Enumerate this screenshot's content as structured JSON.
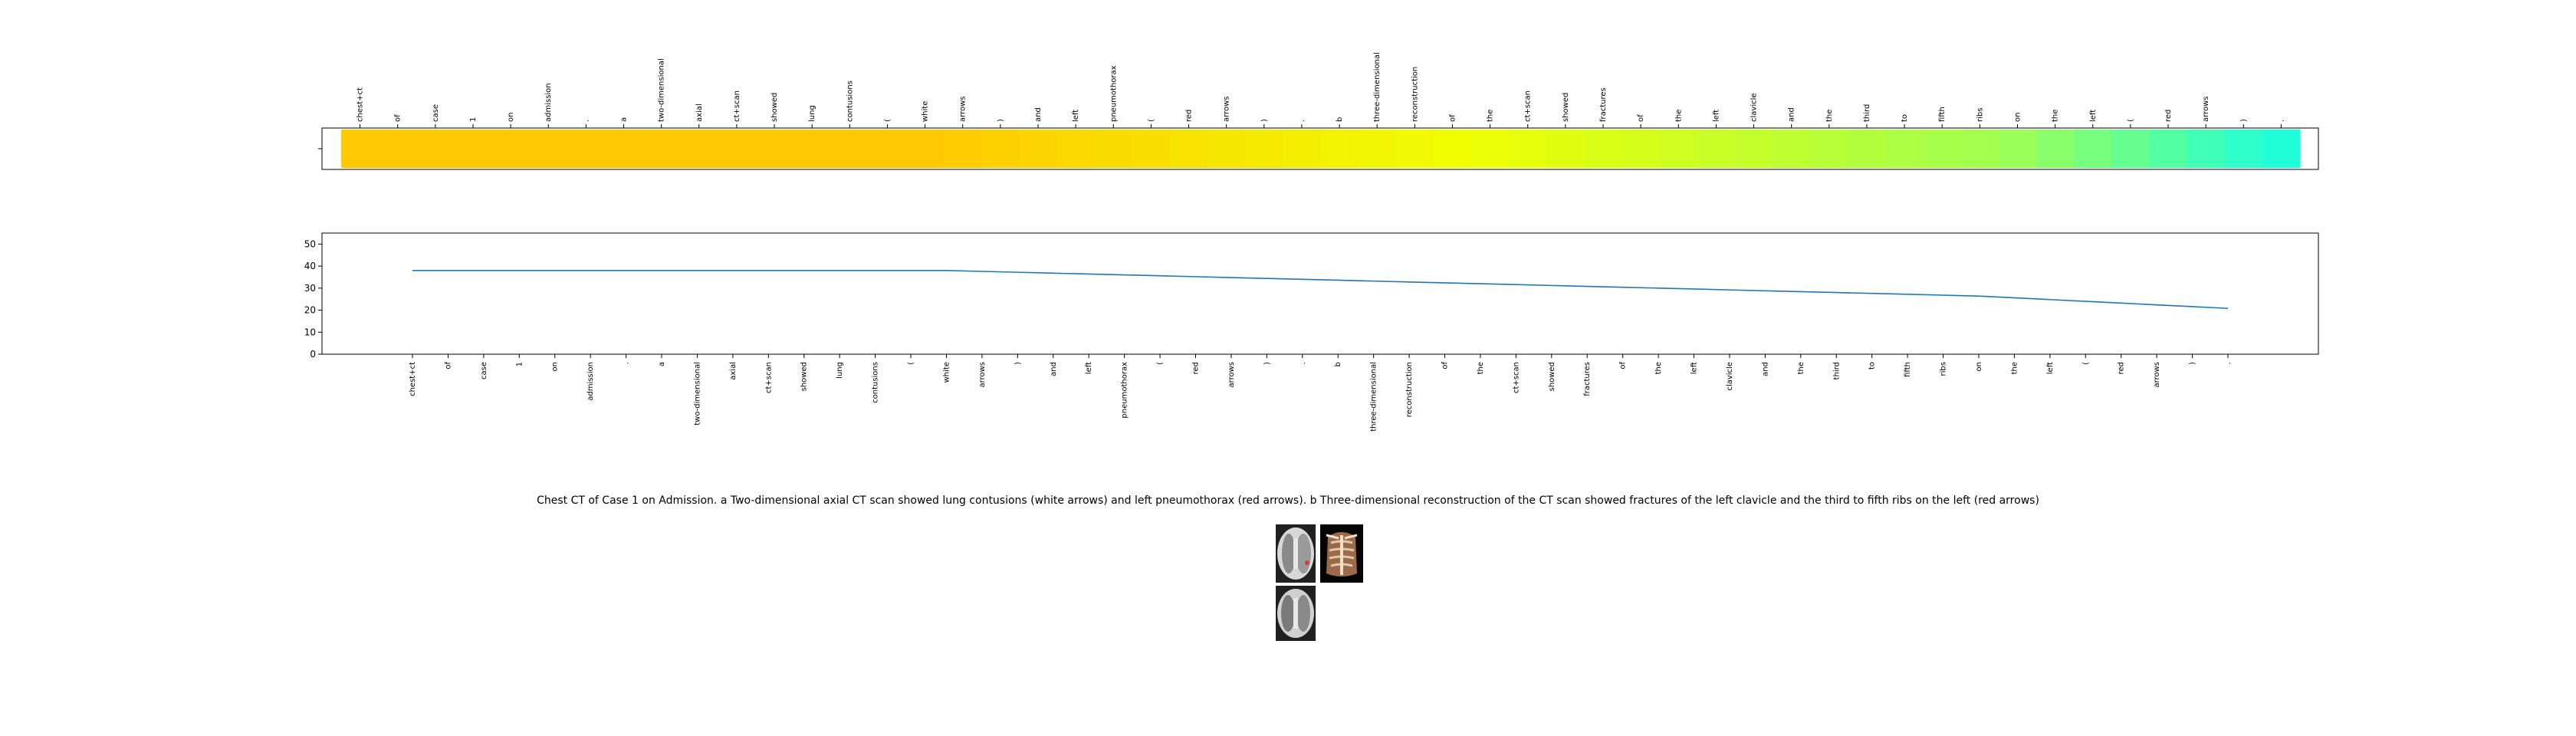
{
  "chart_data": [
    {
      "type": "heatmap",
      "title": "",
      "tokens": [
        "chest+ct",
        "of",
        "case",
        "1",
        "on",
        "admission",
        ".",
        "a",
        "two-dimensional",
        "axial",
        "ct+scan",
        "showed",
        "lung",
        "contusions",
        "(",
        "white",
        "arrows",
        ")",
        "and",
        "left",
        "pneumothorax",
        "(",
        "red",
        "arrows",
        ")",
        ".",
        "b",
        "three-dimensional",
        "reconstruction",
        "of",
        "the",
        "ct+scan",
        "showed",
        "fractures",
        "of",
        "the",
        "left",
        "clavicle",
        "and",
        "the",
        "third",
        "to",
        "fifth",
        "ribs",
        "on",
        "the",
        "left",
        "(",
        "red",
        "arrows",
        ")",
        "."
      ],
      "values": [
        38,
        38,
        38,
        38,
        38,
        38,
        38,
        38,
        38,
        38,
        38,
        38,
        38,
        38,
        38,
        38,
        37.6,
        37.2,
        36.8,
        36.4,
        36,
        35.6,
        35.2,
        34.8,
        34.4,
        34,
        33.6,
        33.2,
        32.8,
        32.4,
        32,
        31.6,
        31.2,
        30.8,
        30.4,
        30,
        29.6,
        29.2,
        28.8,
        28.4,
        28,
        27.6,
        27.2,
        26.8,
        26.4,
        25.6,
        24.8,
        24,
        23.2,
        22.4,
        21.6,
        20.8
      ],
      "colormap": [
        "#ffc800",
        "#f0ff00",
        "#a0ff50",
        "#20ffd8"
      ],
      "vlim": [
        21,
        38
      ]
    },
    {
      "type": "line",
      "title": "",
      "xlabel": "",
      "ylabel": "",
      "ylim": [
        0,
        55
      ],
      "yticks": [
        0,
        10,
        20,
        30,
        40,
        50
      ],
      "grid": false,
      "color": "#1f77b4",
      "series": [
        {
          "values": [
            38,
            38,
            38,
            38,
            38,
            38,
            38,
            38,
            38,
            38,
            38,
            38,
            38,
            38,
            38,
            38,
            37.6,
            37.2,
            36.8,
            36.4,
            36,
            35.6,
            35.2,
            34.8,
            34.4,
            34,
            33.6,
            33.2,
            32.8,
            32.4,
            32,
            31.6,
            31.2,
            30.8,
            30.4,
            30,
            29.6,
            29.2,
            28.8,
            28.4,
            28,
            27.6,
            27.2,
            26.8,
            26.4,
            25.6,
            24.8,
            24,
            23.2,
            22.4,
            21.6,
            20.8
          ]
        }
      ]
    }
  ],
  "caption": "Chest CT of Case 1 on Admission. a Two-dimensional axial CT scan showed lung contusions (white arrows) and left pneumothorax (red arrows). b Three-dimensional reconstruction of the CT scan showed fractures of the left clavicle and the third to fifth ribs on the left (red arrows)",
  "thumbnails": [
    {
      "name": "ct-axial-image-a",
      "kind": "axial"
    },
    {
      "name": "ct-3d-reconstruction-b",
      "kind": "reconstruction"
    },
    {
      "name": "ct-axial-image-lower",
      "kind": "axial"
    }
  ]
}
